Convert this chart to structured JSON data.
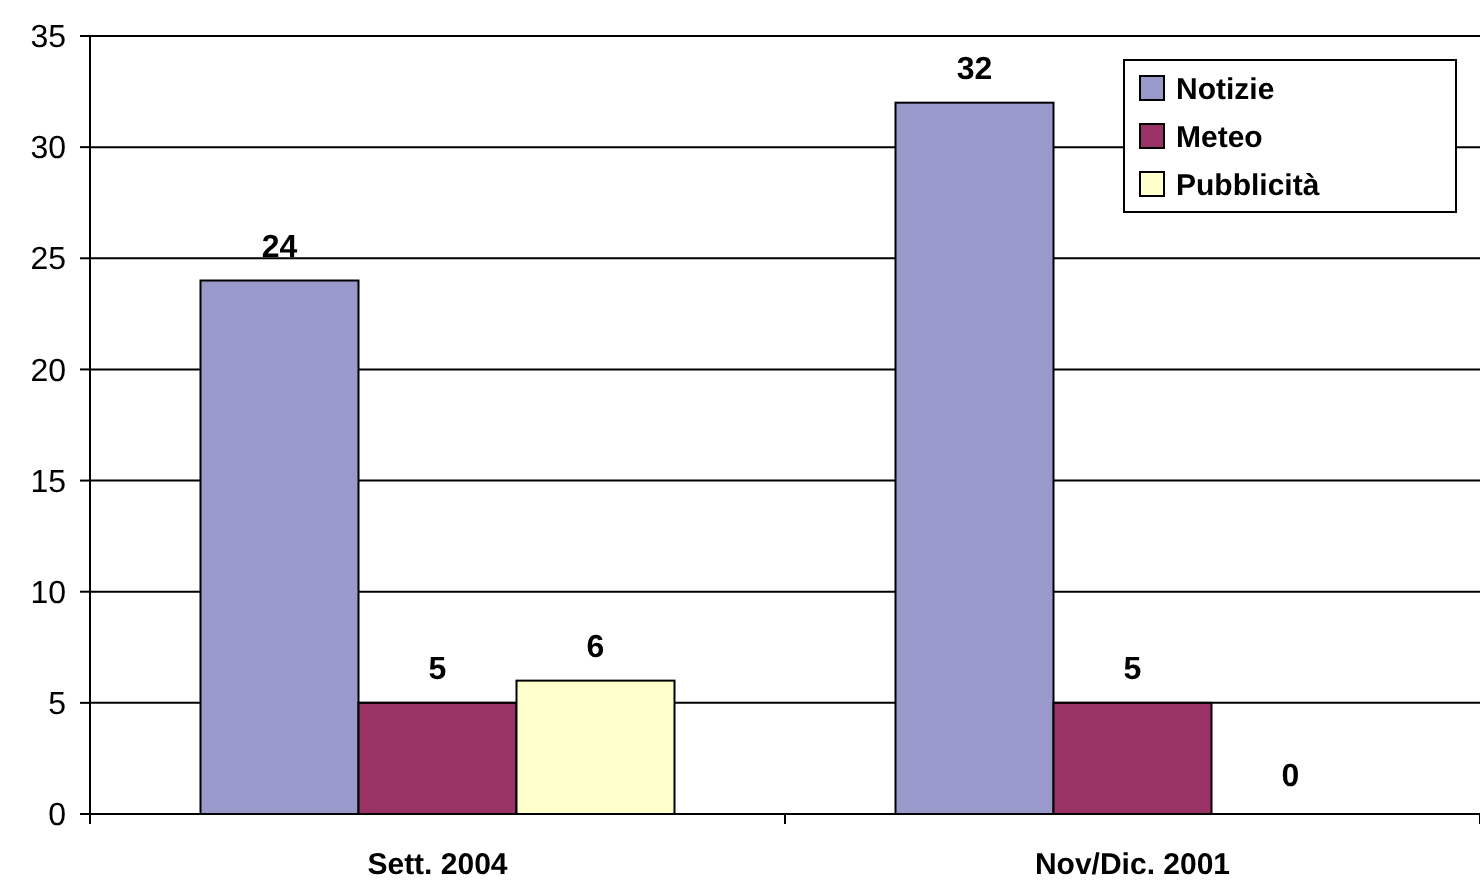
{
  "chart_data": {
    "type": "bar",
    "categories": [
      "Sett. 2004",
      "Nov/Dic. 2001"
    ],
    "series": [
      {
        "name": "Notizie",
        "color": "#9999cc",
        "values": [
          24,
          32
        ],
        "value_labels": [
          "24",
          "32"
        ]
      },
      {
        "name": "Meteo",
        "color": "#993366",
        "values": [
          5,
          5
        ],
        "value_labels": [
          "5",
          "5"
        ]
      },
      {
        "name": "Pubblicità",
        "color": "#ffffcc",
        "values": [
          6,
          0
        ],
        "value_labels": [
          "6",
          null
        ]
      }
    ],
    "annotations": [
      "0"
    ],
    "ylim": [
      0,
      35
    ],
    "yticks": [
      0,
      5,
      10,
      15,
      20,
      25,
      30,
      35
    ],
    "grid": "y",
    "legend": "top right"
  }
}
